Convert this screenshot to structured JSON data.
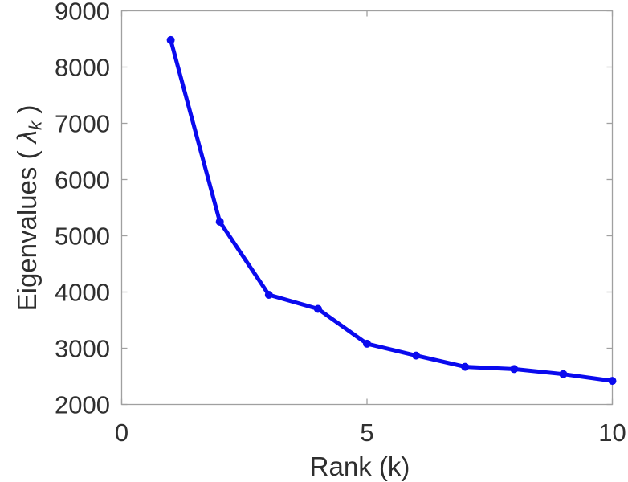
{
  "figure": {
    "background": "#ffffff"
  },
  "chart_data": {
    "type": "line",
    "title": "",
    "xlabel": "Rank (k)",
    "ylabel": "Eigenvalues ( λk )",
    "ylabel_parts": {
      "prefix": "Eigenvalues ( ",
      "symbol": "λ",
      "subscript": "k",
      "suffix": " )"
    },
    "series": [
      {
        "name": "eigenvalues",
        "x": [
          1,
          2,
          3,
          4,
          5,
          6,
          7,
          8,
          9,
          10
        ],
        "y": [
          8480,
          5250,
          3950,
          3700,
          3080,
          2870,
          2670,
          2630,
          2540,
          2420
        ]
      }
    ],
    "xlim": [
      0,
      10
    ],
    "ylim": [
      2000,
      9000
    ],
    "xticks": [
      0,
      5,
      10
    ],
    "yticks": [
      2000,
      3000,
      4000,
      5000,
      6000,
      7000,
      8000,
      9000
    ],
    "grid": false,
    "box": true,
    "legend": "none",
    "line_color": "#0a0aee",
    "marker": "circle",
    "marker_color": "#0a0aee",
    "axis_color": "#a0a0a0",
    "tick_label_color": "#303030"
  }
}
